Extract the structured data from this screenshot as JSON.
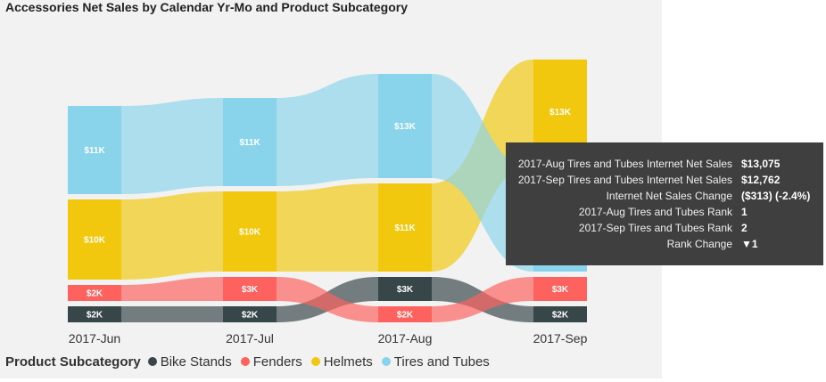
{
  "title": "Accessories Net Sales by Calendar Yr-Mo and Product Subcategory",
  "legend": {
    "title": "Product Subcategory",
    "items": [
      {
        "label": "Bike Stands",
        "color": "#374649"
      },
      {
        "label": "Fenders",
        "color": "#fd625e"
      },
      {
        "label": "Helmets",
        "color": "#f2c80f"
      },
      {
        "label": "Tires and Tubes",
        "color": "#8ad4eb"
      }
    ]
  },
  "chart_data": {
    "type": "ribbon",
    "categories": [
      "2017-Jun",
      "2017-Jul",
      "2017-Aug",
      "2017-Sep"
    ],
    "series": [
      {
        "name": "Bike Stands",
        "color": "#374649",
        "values": [
          2,
          2,
          3,
          2
        ],
        "labels": [
          "$2K",
          "$2K",
          "$3K",
          "$2K"
        ]
      },
      {
        "name": "Fenders",
        "color": "#fd625e",
        "values": [
          2,
          3,
          2,
          3
        ],
        "labels": [
          "$2K",
          "$3K",
          "$2K",
          "$3K"
        ]
      },
      {
        "name": "Helmets",
        "color": "#f2c80f",
        "values": [
          10,
          10,
          11,
          13
        ],
        "labels": [
          "$10K",
          "$10K",
          "$11K",
          "$13K"
        ]
      },
      {
        "name": "Tires and Tubes",
        "color": "#8ad4eb",
        "values": [
          11,
          11,
          13,
          12.8
        ],
        "labels": [
          "$11K",
          "$11K",
          "$13K",
          ""
        ]
      }
    ],
    "stack_order_bottom_to_top": [
      [
        "Bike Stands",
        "Fenders",
        "Helmets",
        "Tires and Tubes"
      ],
      [
        "Bike Stands",
        "Fenders",
        "Helmets",
        "Tires and Tubes"
      ],
      [
        "Fenders",
        "Bike Stands",
        "Helmets",
        "Tires and Tubes"
      ],
      [
        "Bike Stands",
        "Fenders",
        "Tires and Tubes",
        "Helmets"
      ]
    ],
    "units": "$K"
  },
  "tooltip": {
    "rows": [
      {
        "label": "2017-Aug Tires and Tubes Internet Net Sales",
        "value": "$13,075"
      },
      {
        "label": "2017-Sep Tires and Tubes Internet Net Sales",
        "value": "$12,762"
      },
      {
        "label": "Internet Net Sales Change",
        "value": "($313) (-2.4%)"
      },
      {
        "label": "2017-Aug Tires and Tubes Rank",
        "value": "1"
      },
      {
        "label": "2017-Sep Tires and Tubes Rank",
        "value": "2"
      },
      {
        "label": "Rank Change",
        "value": "▼1"
      }
    ]
  }
}
